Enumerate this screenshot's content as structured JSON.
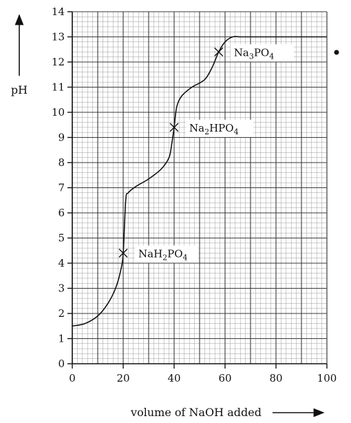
{
  "chart_data": {
    "type": "line",
    "title": "",
    "xlabel": "volume of NaOH added",
    "ylabel": "pH",
    "xlim": [
      0,
      100
    ],
    "ylim": [
      0,
      14
    ],
    "x_ticks": [
      0,
      20,
      40,
      60,
      80,
      100
    ],
    "y_ticks": [
      0,
      1,
      2,
      3,
      4,
      5,
      6,
      7,
      8,
      9,
      10,
      11,
      12,
      13,
      14
    ],
    "grid": true,
    "series": [
      {
        "x": [
          0,
          5,
          10,
          14,
          17,
          19,
          20,
          21,
          22,
          25,
          30,
          35,
          38,
          39,
          40,
          41,
          43,
          47,
          52,
          55,
          57.5,
          60,
          63,
          66,
          70,
          80,
          100
        ],
        "y": [
          1.5,
          1.6,
          1.9,
          2.4,
          3.0,
          3.7,
          4.4,
          6.5,
          6.8,
          7.05,
          7.35,
          7.75,
          8.2,
          8.7,
          9.4,
          10.2,
          10.65,
          11.0,
          11.3,
          11.8,
          12.4,
          12.8,
          13.0,
          13.0,
          13.0,
          13.0,
          13.0
        ]
      }
    ],
    "annotations": [
      {
        "x": 20,
        "y": 4.4,
        "label_base": "NaH",
        "sub1": "2",
        "mid": "PO",
        "sub2": "4"
      },
      {
        "x": 40,
        "y": 9.4,
        "label_base": "Na",
        "sub1": "2",
        "mid": "HPO",
        "sub2": "4"
      },
      {
        "x": 57.5,
        "y": 12.4,
        "label_base": "Na",
        "sub1": "3",
        "mid": "PO",
        "sub2": "4"
      }
    ]
  }
}
